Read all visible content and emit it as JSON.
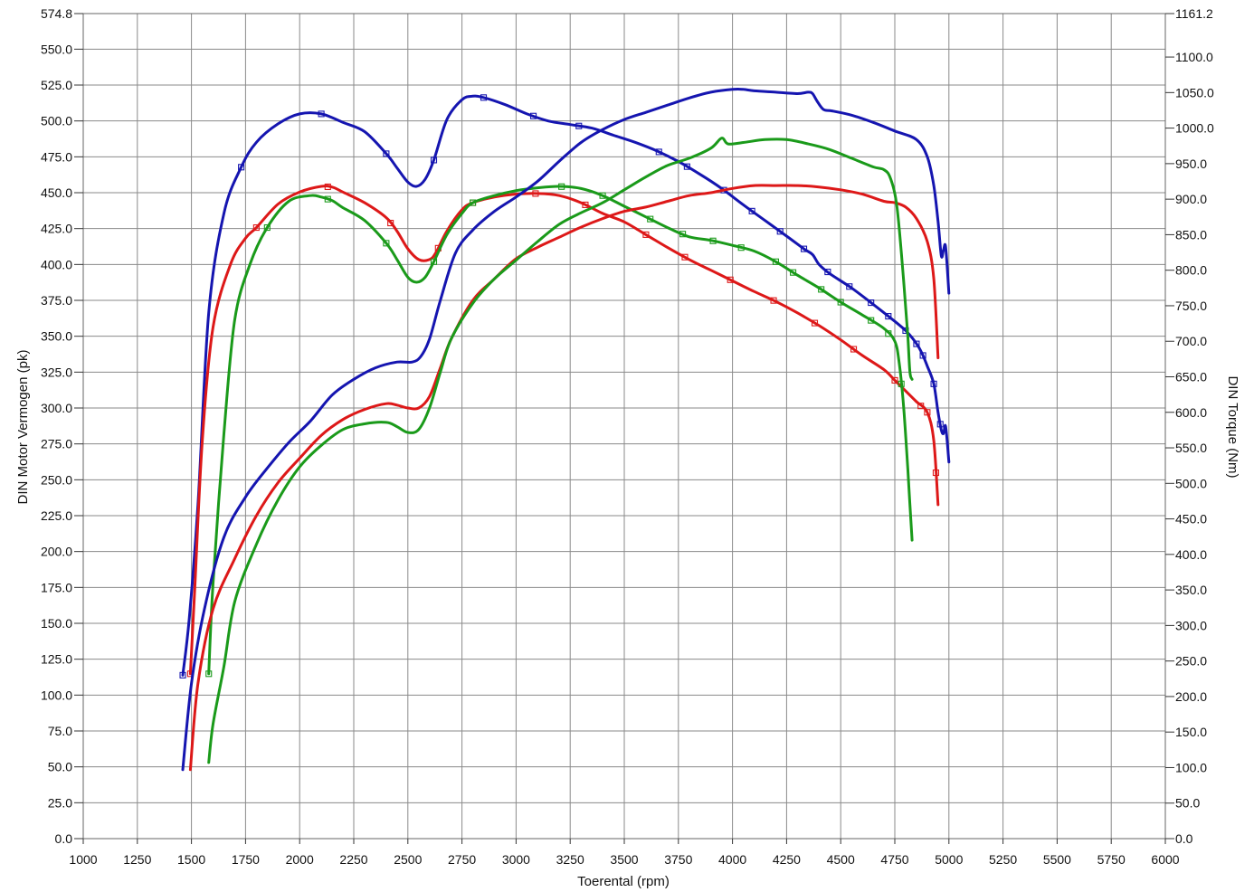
{
  "chart_data": {
    "type": "line",
    "xlabel": "Toerental (rpm)",
    "ylabel_left": "DIN Motor Vermogen (pk)",
    "ylabel_right": "DIN Torque (Nm)",
    "xlim": [
      1000,
      6000
    ],
    "x_ticks": [
      1000,
      1250,
      1500,
      1750,
      2000,
      2250,
      2500,
      2750,
      3000,
      3250,
      3500,
      3750,
      4000,
      4250,
      4500,
      4750,
      5000,
      5250,
      5500,
      5750,
      6000
    ],
    "ylim_left": [
      0,
      574.8
    ],
    "y_ticks_left": [
      "0.0",
      "25.0",
      "50.0",
      "75.0",
      "100.0",
      "125.0",
      "150.0",
      "175.0",
      "200.0",
      "225.0",
      "250.0",
      "275.0",
      "300.0",
      "325.0",
      "350.0",
      "375.0",
      "400.0",
      "425.0",
      "450.0",
      "475.0",
      "500.0",
      "525.0",
      "550.0",
      "574.8"
    ],
    "ylim_right": [
      0,
      1161.2
    ],
    "y_ticks_right": [
      "0.0",
      "50.0",
      "100.0",
      "150.0",
      "200.0",
      "250.0",
      "300.0",
      "350.0",
      "400.0",
      "450.0",
      "500.0",
      "550.0",
      "600.0",
      "650.0",
      "700.0",
      "750.0",
      "800.0",
      "850.0",
      "900.0",
      "950.0",
      "1000.0",
      "1050.0",
      "1100.0",
      "1161.2"
    ],
    "grid": true,
    "series": [
      {
        "color": "#1515b0",
        "quantity": "torque",
        "axis": "right",
        "x": [
          1460,
          1490,
          1530,
          1580,
          1650,
          1730,
          1800,
          1900,
          2000,
          2100,
          2200,
          2300,
          2400,
          2450,
          2500,
          2540,
          2580,
          2620,
          2680,
          2750,
          2800,
          2850,
          2950,
          3050,
          3150,
          3250,
          3350,
          3450,
          3550,
          3650,
          3750,
          3850,
          3950,
          4050,
          4150,
          4250,
          4330,
          4370,
          4400,
          4450,
          4550,
          4650,
          4750,
          4800,
          4830,
          4860,
          4880,
          4900,
          4930,
          4950,
          4965,
          4975,
          4985,
          5000
        ],
        "y": [
          230,
          310,
          470,
          740,
          880,
          945,
          980,
          1006,
          1020,
          1020,
          1008,
          995,
          964,
          944,
          924,
          918,
          928,
          955,
          1012,
          1040,
          1045,
          1043,
          1033,
          1020,
          1010,
          1005,
          1000,
          990,
          980,
          968,
          953,
          935,
          915,
          892,
          870,
          848,
          830,
          822,
          808,
          795,
          775,
          752,
          728,
          715,
          705,
          692,
          680,
          665,
          640,
          600,
          575,
          570,
          580,
          530
        ],
        "markers_x": [
          1460,
          1730,
          2100,
          2400,
          2620,
          2850,
          3080,
          3290,
          3660,
          3790,
          3960,
          4090,
          4220,
          4330,
          4440,
          4540,
          4640,
          4720,
          4800,
          4850,
          4880,
          4930,
          4960
        ]
      },
      {
        "color": "#dd1818",
        "quantity": "torque",
        "axis": "right",
        "x": [
          1495,
          1515,
          1550,
          1600,
          1680,
          1750,
          1800,
          1900,
          2000,
          2100,
          2150,
          2200,
          2300,
          2400,
          2450,
          2500,
          2550,
          2600,
          2630,
          2680,
          2750,
          2800,
          2900,
          3000,
          3100,
          3200,
          3300,
          3400,
          3500,
          3600,
          3700,
          3800,
          3900,
          4000,
          4100,
          4200,
          4300,
          4400,
          4500,
          4600,
          4700,
          4750,
          4800,
          4850,
          4900,
          4930,
          4950
        ],
        "y": [
          232,
          350,
          560,
          720,
          808,
          845,
          860,
          893,
          910,
          918,
          917,
          910,
          895,
          874,
          855,
          830,
          815,
          815,
          825,
          855,
          885,
          895,
          903,
          907,
          908,
          905,
          895,
          880,
          868,
          850,
          832,
          815,
          800,
          785,
          770,
          756,
          740,
          722,
          702,
          680,
          660,
          645,
          630,
          615,
          600,
          560,
          470
        ],
        "markers_x": [
          1495,
          1800,
          2130,
          2420,
          2640,
          2800,
          3090,
          3320,
          3600,
          3780,
          3990,
          4190,
          4380,
          4560,
          4750,
          4870,
          4900,
          4940
        ]
      },
      {
        "color": "#1a9a1a",
        "quantity": "torque",
        "axis": "right",
        "x": [
          1580,
          1600,
          1650,
          1700,
          1770,
          1850,
          1950,
          2050,
          2100,
          2150,
          2200,
          2300,
          2400,
          2450,
          2500,
          2540,
          2580,
          2620,
          2680,
          2750,
          2800,
          2900,
          3000,
          3100,
          3200,
          3300,
          3400,
          3500,
          3600,
          3700,
          3800,
          3900,
          4000,
          4100,
          4200,
          4300,
          4400,
          4500,
          4600,
          4700,
          4750,
          4770,
          4790,
          4810,
          4820,
          4830
        ],
        "y": [
          232,
          360,
          570,
          730,
          808,
          860,
          897,
          905,
          903,
          898,
          888,
          870,
          838,
          815,
          790,
          783,
          790,
          812,
          850,
          880,
          895,
          905,
          912,
          916,
          918,
          915,
          905,
          890,
          875,
          860,
          847,
          842,
          835,
          827,
          812,
          793,
          775,
          755,
          737,
          718,
          700,
          670,
          610,
          520,
          470,
          420
        ],
        "markers_x": [
          1580,
          1850,
          2130,
          2400,
          2620,
          2800,
          3210,
          3400,
          3620,
          3770,
          3910,
          4040,
          4200,
          4280,
          4410,
          4500,
          4640,
          4720,
          4780
        ]
      },
      {
        "color": "#1515b0",
        "quantity": "power",
        "axis": "left",
        "x": [
          1460,
          1500,
          1560,
          1650,
          1750,
          1850,
          1950,
          2050,
          2150,
          2250,
          2350,
          2450,
          2520,
          2560,
          2600,
          2650,
          2720,
          2800,
          2900,
          3000,
          3100,
          3200,
          3300,
          3400,
          3500,
          3600,
          3700,
          3800,
          3900,
          4000,
          4050,
          4100,
          4200,
          4300,
          4350,
          4370,
          4390,
          4420,
          4460,
          4550,
          4650,
          4750,
          4850,
          4900,
          4930,
          4950,
          4965,
          4975,
          4985,
          5000
        ],
        "y": [
          48,
          108,
          160,
          210,
          238,
          258,
          276,
          291,
          309,
          320,
          328,
          332,
          332,
          336,
          348,
          375,
          408,
          424,
          437,
          447,
          458,
          472,
          485,
          494,
          501,
          506,
          511,
          516,
          520,
          522,
          522,
          521,
          520,
          519,
          520,
          519,
          514,
          508,
          507,
          504,
          499,
          493,
          487,
          475,
          455,
          430,
          406,
          410,
          412,
          380
        ],
        "markers_x": []
      },
      {
        "color": "#dd1818",
        "quantity": "power",
        "axis": "left",
        "x": [
          1495,
          1530,
          1600,
          1700,
          1800,
          1900,
          2000,
          2100,
          2200,
          2300,
          2400,
          2450,
          2500,
          2550,
          2600,
          2650,
          2700,
          2800,
          2900,
          3000,
          3100,
          3200,
          3300,
          3400,
          3500,
          3600,
          3700,
          3800,
          3900,
          4000,
          4100,
          4200,
          4300,
          4400,
          4500,
          4600,
          4700,
          4750,
          4800,
          4850,
          4900,
          4930,
          4950
        ],
        "y": [
          48,
          108,
          160,
          195,
          225,
          248,
          265,
          281,
          292,
          299,
          303,
          302,
          300,
          300,
          308,
          328,
          348,
          375,
          390,
          404,
          412,
          419,
          426,
          432,
          437,
          440,
          444,
          448,
          450,
          453,
          455,
          455,
          455,
          454,
          452,
          449,
          444,
          443,
          440,
          432,
          416,
          390,
          335
        ],
        "markers_x": []
      },
      {
        "color": "#1a9a1a",
        "quantity": "power",
        "axis": "left",
        "x": [
          1580,
          1600,
          1650,
          1700,
          1800,
          1900,
          2000,
          2100,
          2200,
          2300,
          2400,
          2450,
          2500,
          2550,
          2600,
          2650,
          2700,
          2800,
          2900,
          3000,
          3100,
          3200,
          3300,
          3400,
          3500,
          3600,
          3700,
          3800,
          3900,
          3950,
          3980,
          4050,
          4150,
          4250,
          4350,
          4450,
          4550,
          4650,
          4700,
          4730,
          4760,
          4790,
          4810,
          4820,
          4830
        ],
        "y": [
          53,
          80,
          120,
          165,
          205,
          236,
          259,
          274,
          285,
          289,
          290,
          287,
          283,
          285,
          300,
          325,
          348,
          373,
          390,
          403,
          416,
          428,
          436,
          443,
          452,
          461,
          469,
          474,
          481,
          488,
          484,
          485,
          487,
          487,
          484,
          480,
          474,
          468,
          466,
          460,
          440,
          390,
          350,
          325,
          320
        ],
        "markers_x": []
      }
    ]
  }
}
